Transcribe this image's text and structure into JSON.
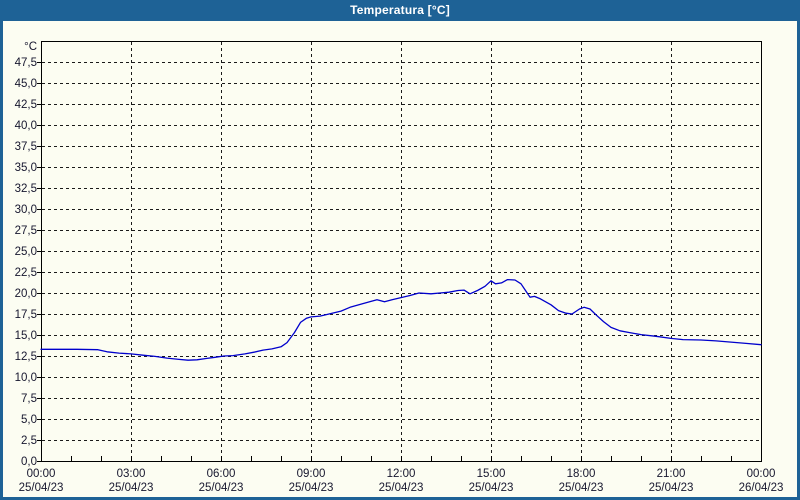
{
  "window": {
    "title": "Temperatura [°C]"
  },
  "colors": {
    "titlebar": "#1e6296",
    "frame": "#1e6296",
    "background": "#fcfdf2",
    "grid": "#1a1a1a",
    "axis": "#000000",
    "label": "#16162e",
    "line": "#0000cc",
    "title_text": "#ffffff"
  },
  "chart_data": {
    "type": "line",
    "title": "Temperatura [°C]",
    "ylabel": "°C",
    "xlabel": "",
    "legend": "none",
    "grid": "dashed",
    "y_axis": {
      "min": 0.0,
      "max": 47.5,
      "step": 2.5,
      "decimal_separator": ","
    },
    "x_axis": {
      "unit": "hours",
      "range_hours": [
        0,
        24
      ],
      "minor_tick_every_hours": 1,
      "label_every_hours": 3,
      "labels": [
        {
          "time": "00:00",
          "date": "25/04/23"
        },
        {
          "time": "03:00",
          "date": "25/04/23"
        },
        {
          "time": "06:00",
          "date": "25/04/23"
        },
        {
          "time": "09:00",
          "date": "25/04/23"
        },
        {
          "time": "12:00",
          "date": "25/04/23"
        },
        {
          "time": "15:00",
          "date": "25/04/23"
        },
        {
          "time": "18:00",
          "date": "25/04/23"
        },
        {
          "time": "21:00",
          "date": "25/04/23"
        },
        {
          "time": "00:00",
          "date": "26/04/23"
        }
      ]
    },
    "series": [
      {
        "name": "Temperatura",
        "color": "#0000cc",
        "points_hour_degC": [
          [
            0,
            13.3
          ],
          [
            0.6,
            13.3
          ],
          [
            1.2,
            13.3
          ],
          [
            1.9,
            13.25
          ],
          [
            2.2,
            13.0
          ],
          [
            2.6,
            12.85
          ],
          [
            3.0,
            12.75
          ],
          [
            3.4,
            12.6
          ],
          [
            3.8,
            12.45
          ],
          [
            4.2,
            12.25
          ],
          [
            4.6,
            12.1
          ],
          [
            4.9,
            12.0
          ],
          [
            5.2,
            12.05
          ],
          [
            5.5,
            12.2
          ],
          [
            5.8,
            12.35
          ],
          [
            6.1,
            12.5
          ],
          [
            6.4,
            12.55
          ],
          [
            6.8,
            12.75
          ],
          [
            7.1,
            12.95
          ],
          [
            7.4,
            13.2
          ],
          [
            7.7,
            13.35
          ],
          [
            8.0,
            13.6
          ],
          [
            8.2,
            14.1
          ],
          [
            8.45,
            15.3
          ],
          [
            8.65,
            16.5
          ],
          [
            8.85,
            17.0
          ],
          [
            9.0,
            17.15
          ],
          [
            9.3,
            17.25
          ],
          [
            9.6,
            17.5
          ],
          [
            10.0,
            17.85
          ],
          [
            10.3,
            18.3
          ],
          [
            10.7,
            18.7
          ],
          [
            11.0,
            19.0
          ],
          [
            11.2,
            19.2
          ],
          [
            11.45,
            18.95
          ],
          [
            11.7,
            19.2
          ],
          [
            12.0,
            19.45
          ],
          [
            12.3,
            19.7
          ],
          [
            12.6,
            20.0
          ],
          [
            13.0,
            19.9
          ],
          [
            13.3,
            20.0
          ],
          [
            13.6,
            20.1
          ],
          [
            13.9,
            20.3
          ],
          [
            14.1,
            20.35
          ],
          [
            14.3,
            19.9
          ],
          [
            14.55,
            20.3
          ],
          [
            14.8,
            20.8
          ],
          [
            15.0,
            21.45
          ],
          [
            15.15,
            21.1
          ],
          [
            15.35,
            21.2
          ],
          [
            15.55,
            21.6
          ],
          [
            15.8,
            21.55
          ],
          [
            16.0,
            21.1
          ],
          [
            16.15,
            20.3
          ],
          [
            16.3,
            19.5
          ],
          [
            16.45,
            19.6
          ],
          [
            16.65,
            19.3
          ],
          [
            17.0,
            18.6
          ],
          [
            17.25,
            17.9
          ],
          [
            17.5,
            17.6
          ],
          [
            17.7,
            17.5
          ],
          [
            17.95,
            18.1
          ],
          [
            18.1,
            18.3
          ],
          [
            18.3,
            18.1
          ],
          [
            18.5,
            17.4
          ],
          [
            18.75,
            16.6
          ],
          [
            19.0,
            15.9
          ],
          [
            19.3,
            15.5
          ],
          [
            19.6,
            15.3
          ],
          [
            20.0,
            15.05
          ],
          [
            20.5,
            14.85
          ],
          [
            21.0,
            14.6
          ],
          [
            21.4,
            14.45
          ],
          [
            22.0,
            14.4
          ],
          [
            22.5,
            14.3
          ],
          [
            23.0,
            14.15
          ],
          [
            23.5,
            14.0
          ],
          [
            24.0,
            13.85
          ]
        ]
      }
    ]
  }
}
